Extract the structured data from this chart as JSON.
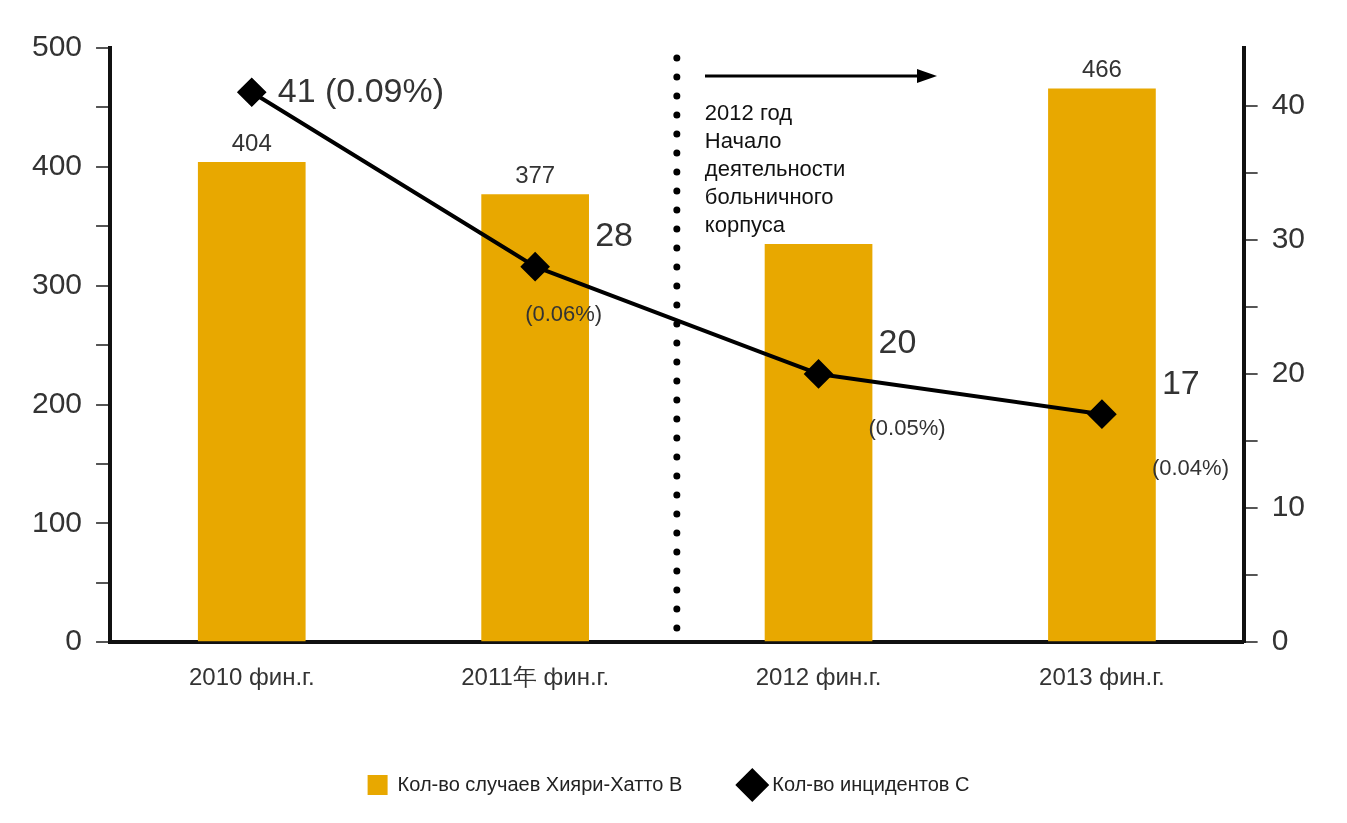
{
  "chart_data": {
    "type": "bar",
    "categories": [
      "2010 фин.г.",
      "2011年 фин.г.",
      "2012 фин.г.",
      "2013 фин.г."
    ],
    "series": [
      {
        "name": "Кол-во случаев Хияри-Хатто B",
        "color": "#e8a800",
        "values": [
          404,
          377,
          335,
          466
        ],
        "value_labels": [
          "404",
          "377",
          null,
          "466"
        ]
      },
      {
        "name": "Кол-во инцидентов C",
        "type": "line",
        "axis": "y2",
        "color": "#000000",
        "values": [
          41,
          28,
          20,
          17
        ],
        "value_labels": [
          "41 (0.09%)",
          "28 (0.06%)",
          "20 (0.05%)",
          "17 (0.04%)"
        ]
      }
    ],
    "ylim": [
      0,
      500
    ],
    "yticks": [
      0,
      {
        "value": 50,
        "label": null
      },
      100,
      {
        "value": 150,
        "label": null
      },
      200,
      {
        "value": 250,
        "label": null
      },
      300,
      {
        "value": 350,
        "label": null
      },
      400,
      {
        "value": 450,
        "label": null
      },
      500
    ],
    "y2lim": [
      0,
      44.3
    ],
    "y2ticks": [
      0,
      {
        "value": 5,
        "label": null
      },
      10,
      {
        "value": 15,
        "label": null
      },
      20,
      {
        "value": 25,
        "label": null
      },
      30,
      {
        "value": 35,
        "label": null
      },
      40
    ],
    "marker": "diamond",
    "line_style": "solid",
    "grid": false,
    "legend": "bottom",
    "annotations": [
      "2012 год Начало деятельности больничного корпуса"
    ]
  }
}
